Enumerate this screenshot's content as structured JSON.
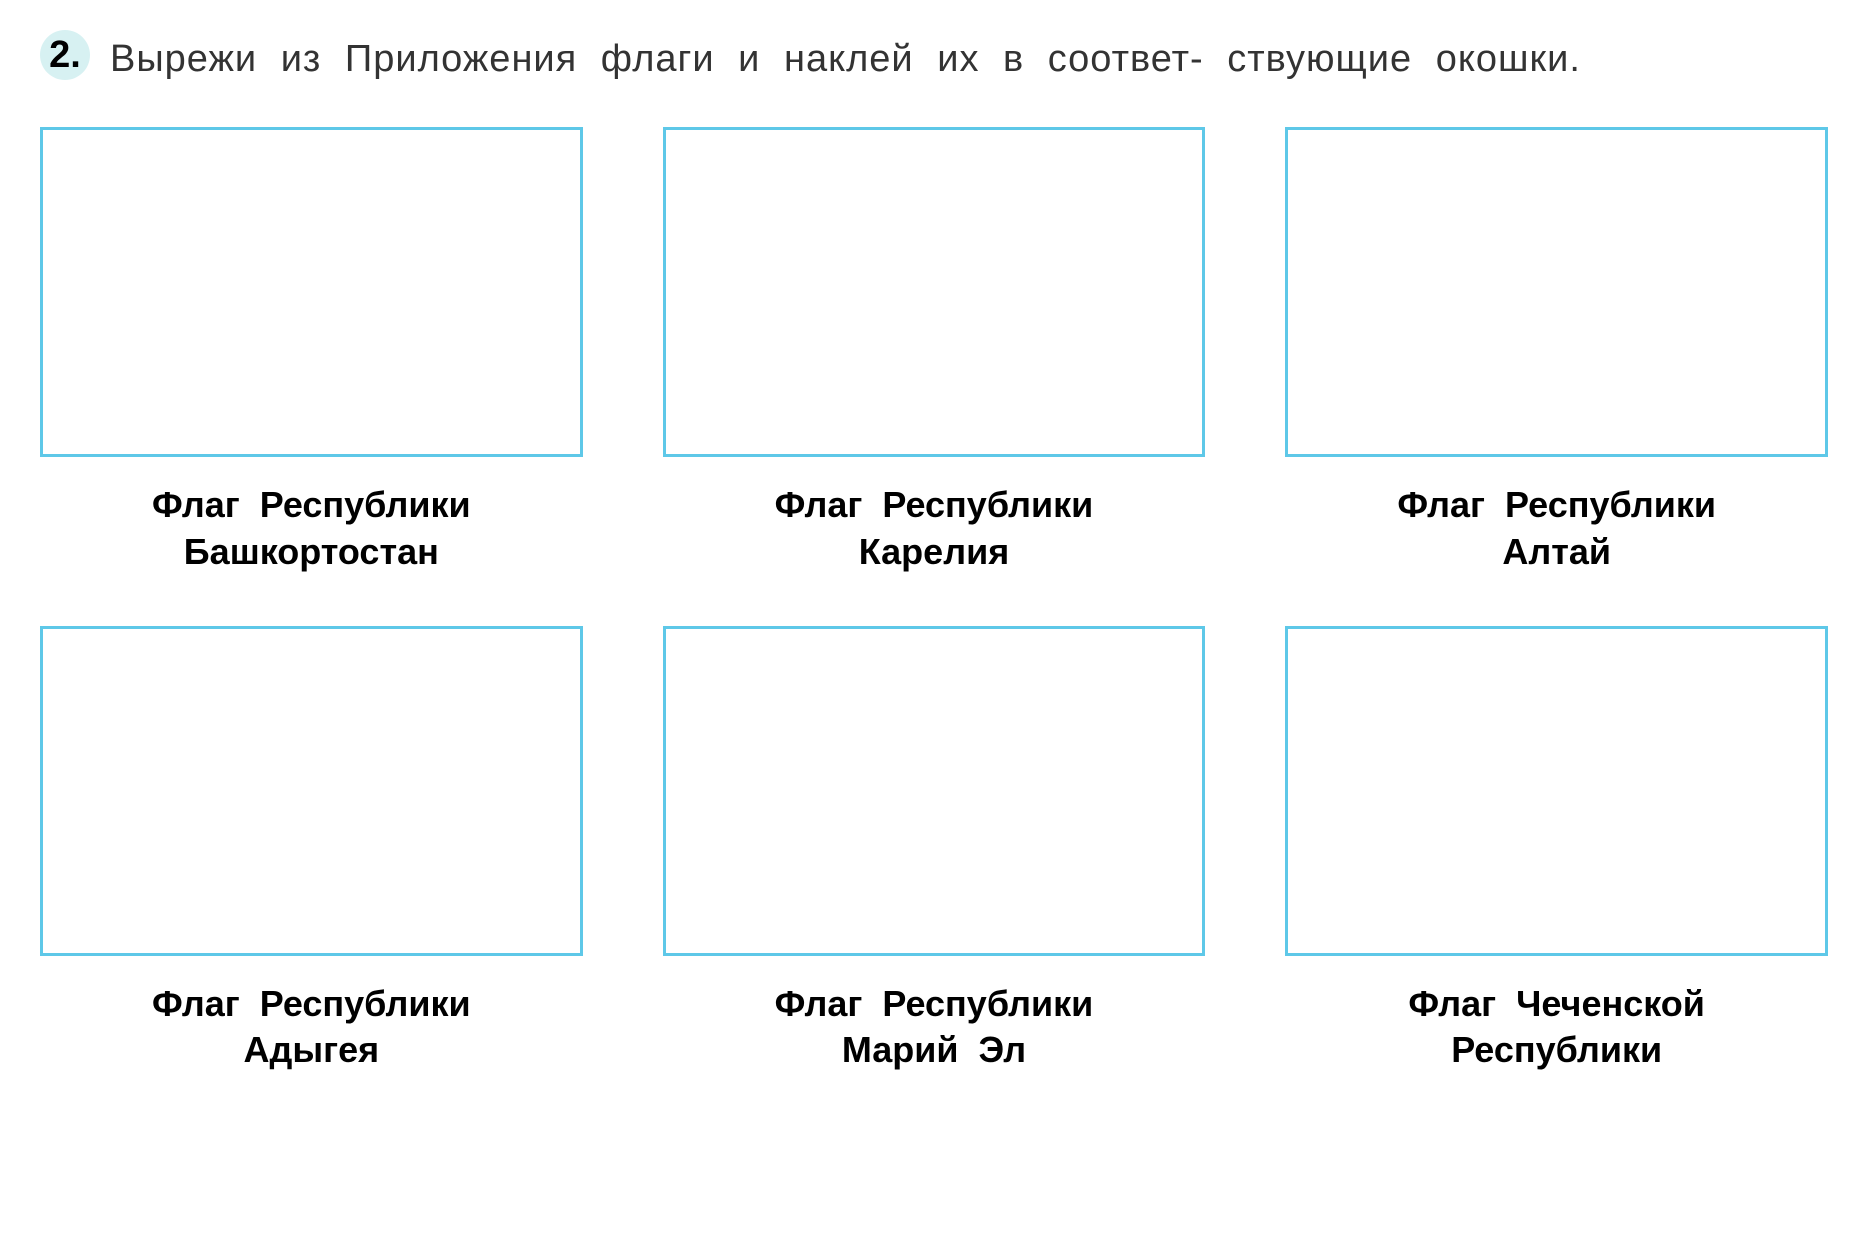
{
  "question": {
    "number": "2.",
    "text": "Вырежи из Приложения флаги и наклей их в соответ-\nствующие окошки."
  },
  "grid": {
    "rows": 2,
    "cols": 3,
    "box_border_color": "#5ec8e8",
    "box_border_width": 3,
    "box_background": "#ffffff",
    "number_circle_bg": "#d7f1f2",
    "caption_fontsize": 36,
    "caption_fontweight": "bold",
    "question_fontsize": 38,
    "question_color": "#333333"
  },
  "items": [
    {
      "caption": "Флаг Республики\nБашкортостан"
    },
    {
      "caption": "Флаг Республики\nКарелия"
    },
    {
      "caption": "Флаг Республики\nАлтай"
    },
    {
      "caption": "Флаг Республики\nАдыгея"
    },
    {
      "caption": "Флаг Республики\nМарий Эл"
    },
    {
      "caption": "Флаг Чеченской\nРеспублики"
    }
  ]
}
